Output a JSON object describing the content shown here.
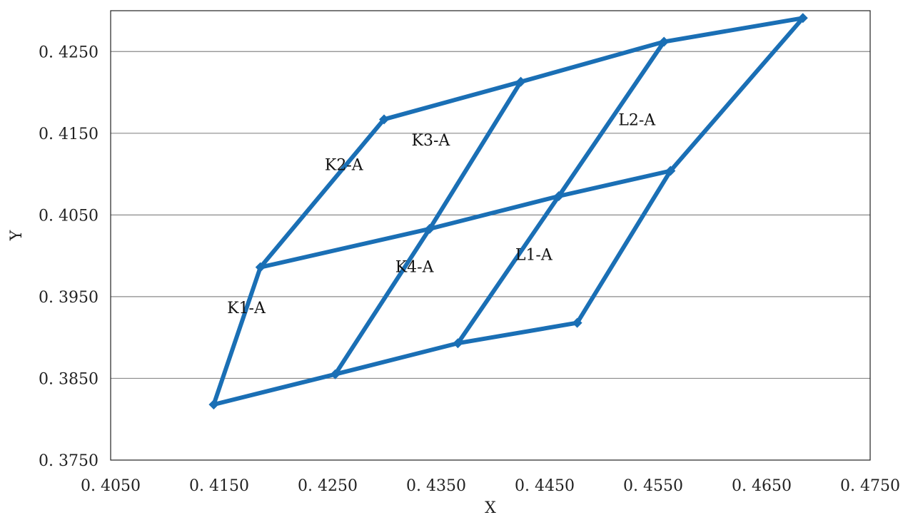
{
  "chart_data": {
    "type": "line",
    "xlabel": "X",
    "ylabel": "Y",
    "xlim": [
      0.405,
      0.475
    ],
    "ylim": [
      0.375,
      0.43
    ],
    "xticks": [
      "0.4050",
      "0.4150",
      "0.4250",
      "0.4350",
      "0.4450",
      "0.4550",
      "0.4650",
      "0.4750"
    ],
    "yticks": [
      "0.3750",
      "0.3850",
      "0.3950",
      "0.4050",
      "0.4150",
      "0.4250"
    ],
    "grid": "horizontal",
    "line_color": "#1a6fb5",
    "series": [
      {
        "x": [
          0.4145,
          0.4257,
          0.437,
          0.448
        ],
        "y": [
          0.3818,
          0.3855,
          0.3893,
          0.3918
        ]
      },
      {
        "x": [
          0.4188,
          0.4344,
          0.4463,
          0.4566
        ],
        "y": [
          0.3986,
          0.4033,
          0.4073,
          0.4104
        ]
      },
      {
        "x": [
          0.4302,
          0.4428,
          0.456,
          0.4688
        ],
        "y": [
          0.4167,
          0.4213,
          0.4262,
          0.4291
        ]
      },
      {
        "x": [
          0.4145,
          0.4188,
          0.4302
        ],
        "y": [
          0.3818,
          0.3986,
          0.4167
        ]
      },
      {
        "x": [
          0.4257,
          0.4344,
          0.4428
        ],
        "y": [
          0.3855,
          0.4033,
          0.4213
        ]
      },
      {
        "x": [
          0.437,
          0.4463,
          0.456
        ],
        "y": [
          0.3893,
          0.4073,
          0.4262
        ]
      },
      {
        "x": [
          0.448,
          0.4566,
          0.4688
        ],
        "y": [
          0.3918,
          0.4104,
          0.4291
        ]
      }
    ],
    "annotations": [
      {
        "text": "K1-A",
        "x": 0.4175,
        "y": 0.393
      },
      {
        "text": "K2-A",
        "x": 0.4265,
        "y": 0.4105
      },
      {
        "text": "K3-A",
        "x": 0.4345,
        "y": 0.4135
      },
      {
        "text": "K4-A",
        "x": 0.433,
        "y": 0.398
      },
      {
        "text": "L1-A",
        "x": 0.444,
        "y": 0.3995
      },
      {
        "text": "L2-A",
        "x": 0.4535,
        "y": 0.416
      }
    ]
  }
}
